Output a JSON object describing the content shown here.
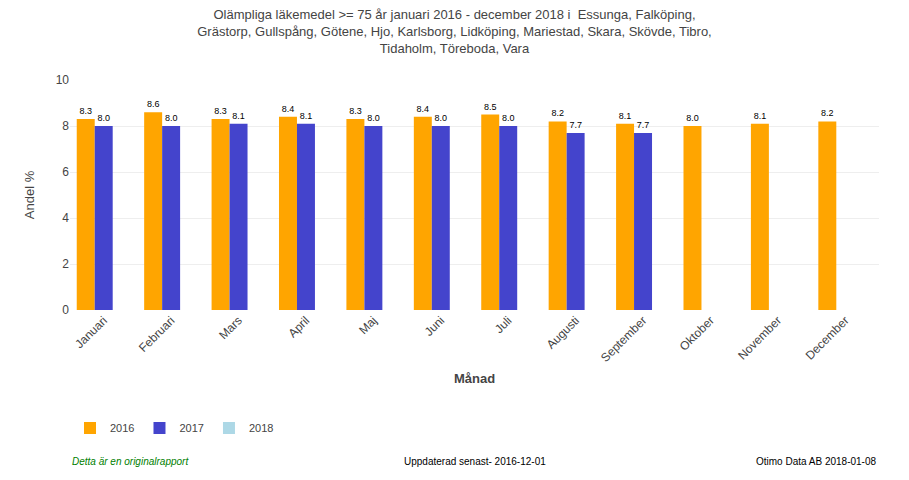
{
  "chart_data": {
    "type": "bar",
    "title": "Olämpliga läkemedel >= 75 år januari 2016 - december 2018 i  Essunga, Falköping,\nGrästorp, Gullspång, Götene, Hjo, Karlsborg, Lidköping, Mariestad, Skara, Skövde, Tibro,\nTidaholm, Töreboda, Vara",
    "x_label": "Månad",
    "y_label": "Andel %",
    "categories": [
      "Januari",
      "Februari",
      "Mars",
      "April",
      "Maj",
      "Juni",
      "Juli",
      "Augusti",
      "September",
      "Oktober",
      "November",
      "December"
    ],
    "series": [
      {
        "name": "2016",
        "color": "#FFA500",
        "values": [
          8.3,
          8.6,
          8.3,
          8.4,
          8.3,
          8.4,
          8.5,
          8.2,
          8.1,
          8.0,
          8.1,
          8.2
        ],
        "value_labels": [
          "8.3",
          "8.6",
          "8.3",
          "8.4",
          "8.3",
          "8.4",
          "8.5",
          "8.2",
          "8.1",
          "8.0",
          "8.1",
          "8.2"
        ]
      },
      {
        "name": "2017",
        "color": "#4444CC",
        "values": [
          8.0,
          8.0,
          8.1,
          8.1,
          8.0,
          8.0,
          8.0,
          7.7,
          7.7,
          null,
          null,
          null
        ],
        "value_labels": [
          "8.0",
          "8.0",
          "8.1",
          "8.1",
          "8.0",
          "8.0",
          "8.0",
          "7.7",
          "7.7",
          null,
          null,
          null
        ]
      },
      {
        "name": "2018",
        "color": "#ADD8E6",
        "values": [
          null,
          null,
          null,
          null,
          null,
          null,
          null,
          null,
          null,
          null,
          null,
          null
        ]
      }
    ],
    "ylim": [
      0,
      10
    ],
    "yticks": [
      0,
      2,
      4,
      6,
      8,
      10
    ],
    "grid": true,
    "legend": "bottom",
    "data_labels": true,
    "annotations": [
      "Detta är en originalrapport",
      "Uppdaterad senast- 2016-12-01",
      "Otimo Data AB 2018-01-08"
    ]
  }
}
